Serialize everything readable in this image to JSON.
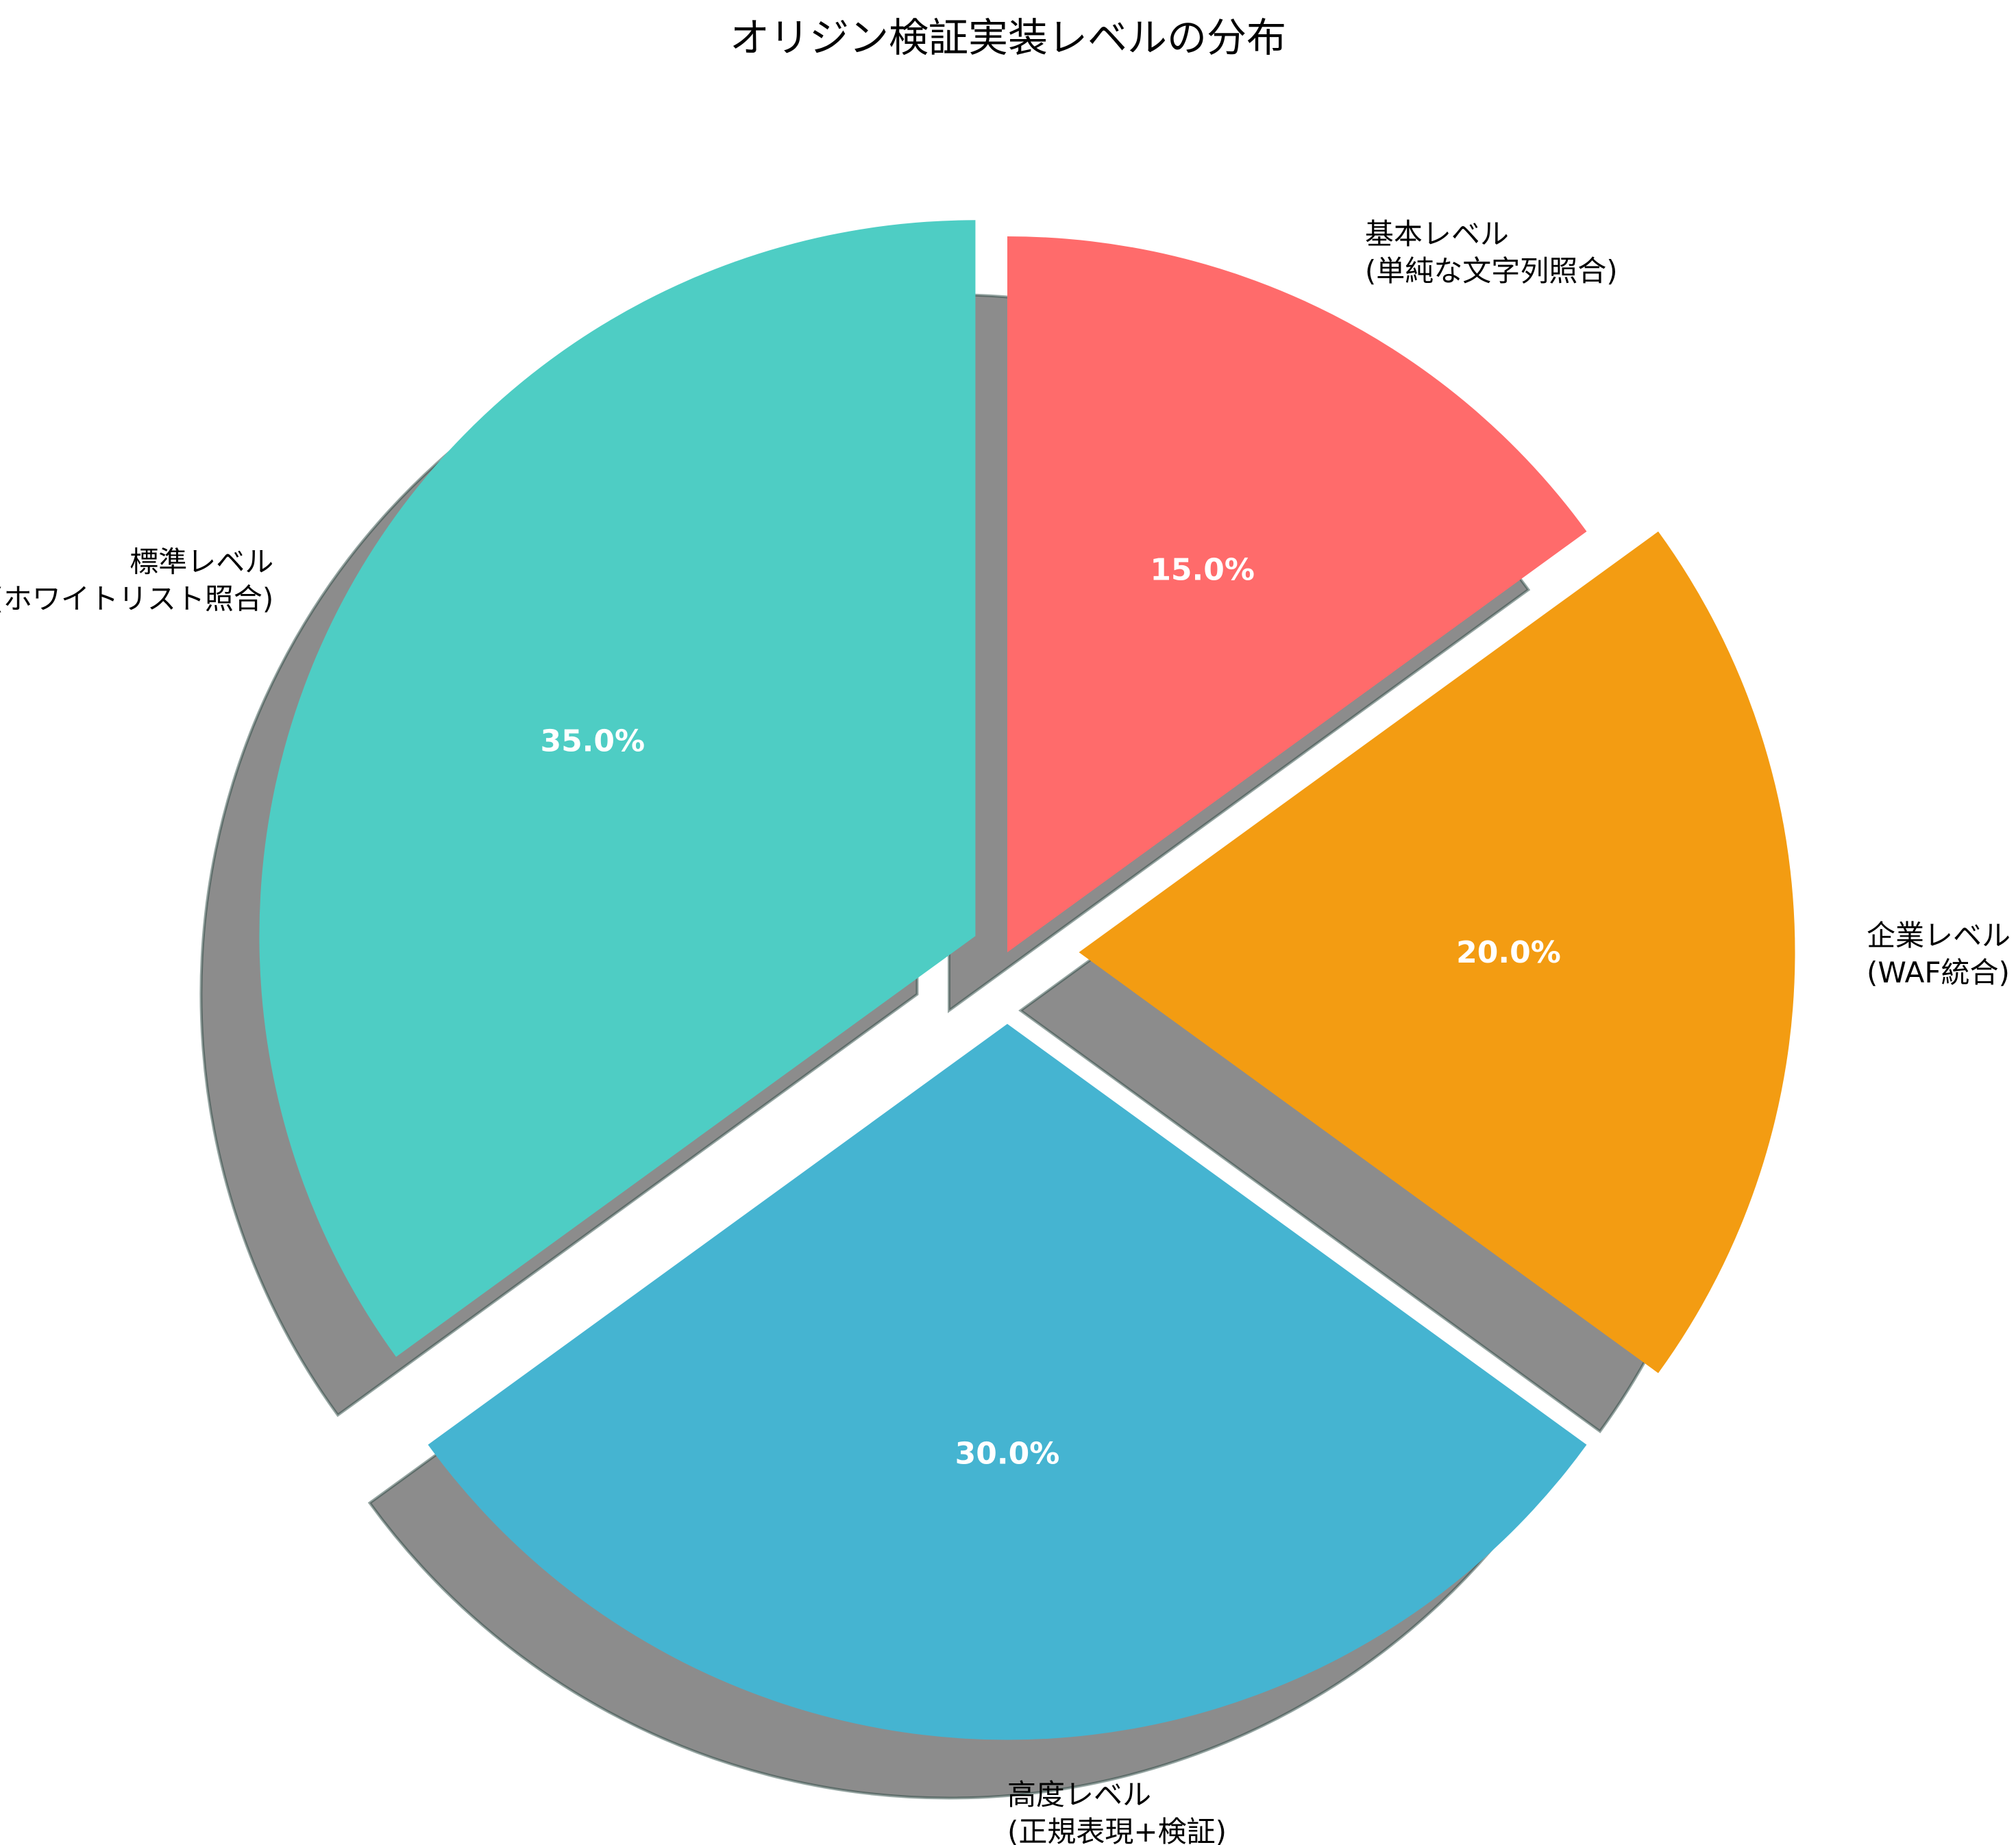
{
  "chart_data": {
    "type": "pie",
    "title": "オリジン検証実装レベルの分布",
    "start_angle_deg": 90,
    "direction": "clockwise",
    "shadow": true,
    "slices": [
      {
        "label_line1": "基本レベル",
        "label_line2": "(単純な文字列照合)",
        "value": 15.0,
        "pct_label": "15.0%",
        "color": "#FF6B6B",
        "explode": 0.0
      },
      {
        "label_line1": "企業レベル",
        "label_line2": "(WAF統合)",
        "value": 20.0,
        "pct_label": "20.0%",
        "color": "#F39C12",
        "explode": 0.1
      },
      {
        "label_line1": "高度レベル",
        "label_line2": "(正規表現+検証)",
        "value": 30.0,
        "pct_label": "30.0%",
        "color": "#45B4D1",
        "explode": 0.1
      },
      {
        "label_line1": "標準レベル",
        "label_line2": "(ホワイトリスト照合)",
        "value": 35.0,
        "pct_label": "35.0%",
        "color": "#4ECDC4",
        "explode": 0.05
      }
    ]
  }
}
